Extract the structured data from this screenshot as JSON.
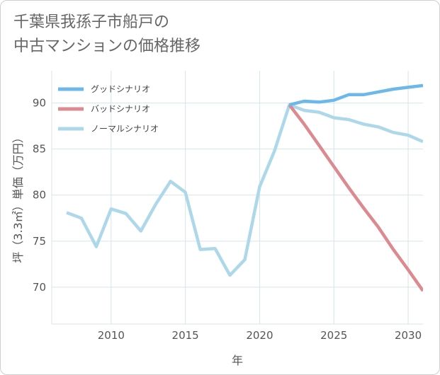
{
  "title_lines": [
    "千葉県我孫子市船戸の",
    "中古マンションの価格推移"
  ],
  "chart_data": {
    "type": "line",
    "xlabel": "年",
    "ylabel": "坪（3.3㎡）単価（万円）",
    "xlim": [
      2006.0,
      2031.0
    ],
    "ylim": [
      66.0,
      93.5
    ],
    "xticks": [
      2010,
      2015,
      2020,
      2025,
      2030
    ],
    "yticks": [
      70,
      75,
      80,
      85,
      90
    ],
    "grid": true,
    "legend_position": "top-left",
    "series": [
      {
        "name": "グッドシナリオ",
        "color": "#6cb8ea",
        "x": [
          2022,
          2023,
          2024,
          2025,
          2026,
          2027,
          2028,
          2029,
          2030,
          2031
        ],
        "y": [
          89.8,
          90.2,
          90.1,
          90.3,
          90.9,
          90.9,
          91.2,
          91.5,
          91.7,
          91.9
        ]
      },
      {
        "name": "バッドシナリオ",
        "color": "#dc8a8f",
        "x": [
          2022,
          2023,
          2024,
          2025,
          2026,
          2027,
          2028,
          2029,
          2030,
          2031
        ],
        "y": [
          89.8,
          87.7,
          85.4,
          83.1,
          80.8,
          78.6,
          76.5,
          74.1,
          71.9,
          69.6
        ]
      },
      {
        "name": "ノーマルシナリオ",
        "color": "#add8ea",
        "x": [
          2007,
          2008,
          2009,
          2010,
          2011,
          2012,
          2013,
          2014,
          2015,
          2016,
          2017,
          2018,
          2019,
          2020,
          2021,
          2022,
          2023,
          2024,
          2025,
          2026,
          2027,
          2028,
          2029,
          2030,
          2031
        ],
        "y": [
          78.1,
          77.5,
          74.4,
          78.5,
          78.0,
          76.1,
          79.0,
          81.5,
          80.3,
          74.1,
          74.2,
          71.3,
          73.0,
          80.9,
          84.8,
          89.8,
          89.2,
          89.0,
          88.4,
          88.2,
          87.7,
          87.4,
          86.8,
          86.5,
          85.8
        ]
      }
    ]
  }
}
